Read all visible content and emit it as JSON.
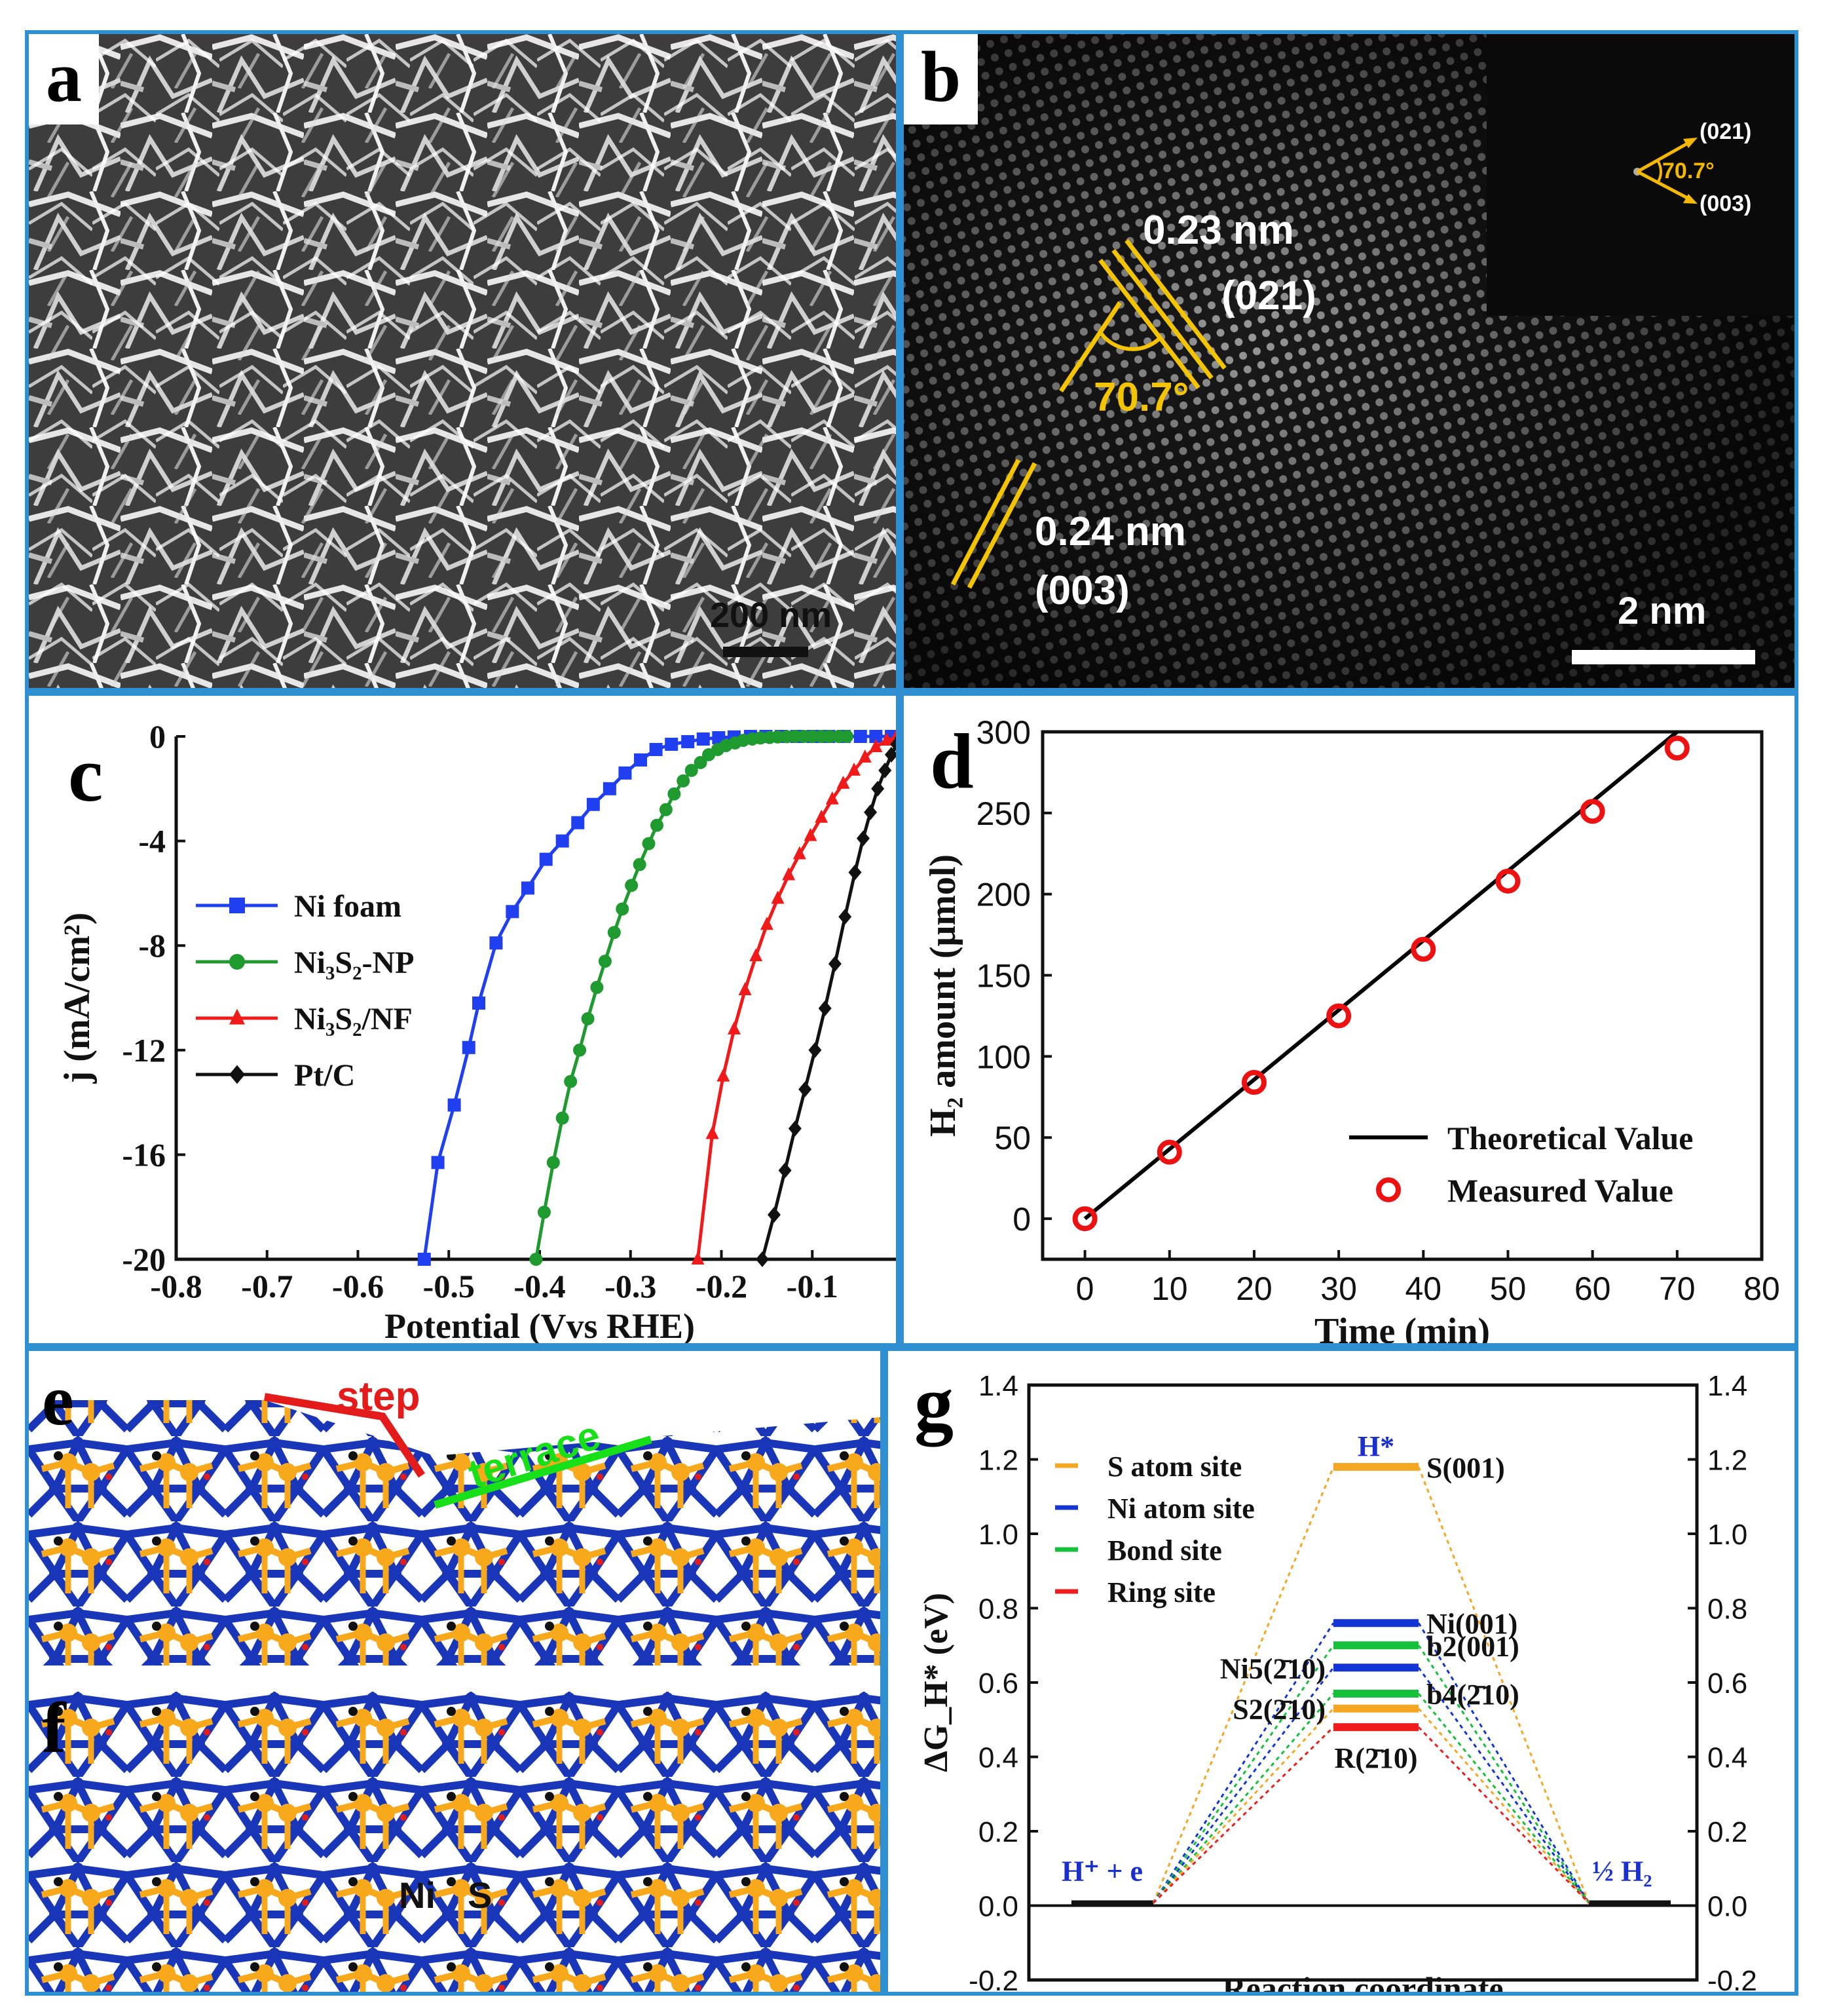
{
  "panels": {
    "a": {
      "label": "a",
      "scale_bar": "200 nm"
    },
    "b": {
      "label": "b",
      "scale_bar": "2 nm",
      "d1": "0.23 nm",
      "plane1": "(021)",
      "d2": "0.24 nm",
      "plane2": "(003)",
      "angle": "70.7°",
      "fft_plane1": "(021)",
      "fft_plane2": "(003)",
      "fft_angle": "70.7°"
    },
    "c": {
      "label": "c"
    },
    "d": {
      "label": "d"
    },
    "e": {
      "label": "e",
      "step": "step",
      "terrace": "terrace"
    },
    "f": {
      "label": "f",
      "atom_ni": "Ni",
      "atom_s": "S"
    },
    "g": {
      "label": "g"
    }
  },
  "colors": {
    "border": "#2f8fd0",
    "ni_blue": "#1a36b8",
    "s_orange": "#f7a81b",
    "yellow": "#f5c400"
  },
  "chart_data": [
    {
      "id": "c",
      "type": "line",
      "xlabel": "Potential (Vvs RHE)",
      "ylabel": "j (mA/cm²)",
      "xlim": [
        -0.8,
        0.0
      ],
      "ylim": [
        -20,
        0
      ],
      "xticks": [
        "-0.8",
        "-0.7",
        "-0.6",
        "-0.5",
        "-0.4",
        "-0.3",
        "-0.2",
        "-0.1"
      ],
      "yticks": [
        "0",
        "-4",
        "-8",
        "-12",
        "-16",
        "-20"
      ],
      "legend_position": "left-middle",
      "grid": false,
      "series": [
        {
          "name": "Ni foam",
          "color": "#1f3ff0",
          "marker": "square",
          "x": [
            -0.527,
            -0.512,
            -0.494,
            -0.478,
            -0.467,
            -0.448,
            -0.43,
            -0.413,
            -0.393,
            -0.375,
            -0.358,
            -0.341,
            -0.323,
            -0.306,
            -0.289,
            -0.272,
            -0.255,
            -0.237,
            -0.22,
            -0.203,
            -0.186,
            -0.168,
            -0.151,
            -0.134,
            -0.117,
            -0.099,
            -0.082,
            -0.065,
            -0.047,
            -0.03,
            -0.013
          ],
          "y": [
            -20,
            -16.3,
            -14.1,
            -11.9,
            -10.2,
            -7.9,
            -6.7,
            -5.8,
            -4.7,
            -4.0,
            -3.3,
            -2.6,
            -2.0,
            -1.4,
            -0.9,
            -0.5,
            -0.3,
            -0.2,
            -0.1,
            -0.05,
            -0.02,
            0,
            0,
            0,
            0,
            0,
            0,
            0,
            0,
            0,
            0
          ]
        },
        {
          "name": "Ni₃S₂-NP",
          "color": "#1e9a2e",
          "marker": "circle",
          "x": [
            -0.404,
            -0.395,
            -0.385,
            -0.375,
            -0.366,
            -0.356,
            -0.347,
            -0.337,
            -0.328,
            -0.318,
            -0.309,
            -0.299,
            -0.29,
            -0.28,
            -0.271,
            -0.261,
            -0.252,
            -0.242,
            -0.233,
            -0.223,
            -0.214,
            -0.204,
            -0.195,
            -0.185,
            -0.176,
            -0.166,
            -0.157,
            -0.147,
            -0.138,
            -0.128,
            -0.119,
            -0.109,
            -0.1,
            -0.09,
            -0.081,
            -0.071,
            -0.062
          ],
          "y": [
            -20,
            -18.2,
            -16.3,
            -14.6,
            -13.2,
            -12.0,
            -10.8,
            -9.6,
            -8.6,
            -7.5,
            -6.6,
            -5.7,
            -4.9,
            -4.1,
            -3.4,
            -2.8,
            -2.2,
            -1.7,
            -1.3,
            -1.0,
            -0.7,
            -0.5,
            -0.35,
            -0.25,
            -0.15,
            -0.1,
            -0.06,
            -0.04,
            -0.02,
            -0.01,
            0,
            0,
            0,
            0,
            0,
            0,
            0
          ]
        },
        {
          "name": "Ni₃S₂/NF",
          "color": "#f01a1a",
          "marker": "triangle",
          "x": [
            -0.226,
            -0.21,
            -0.198,
            -0.186,
            -0.174,
            -0.162,
            -0.15,
            -0.138,
            -0.126,
            -0.114,
            -0.102,
            -0.09,
            -0.078,
            -0.066,
            -0.054,
            -0.042,
            -0.03,
            -0.018,
            -0.008
          ],
          "y": [
            -20,
            -15.2,
            -13.0,
            -11.2,
            -9.7,
            -8.4,
            -7.2,
            -6.2,
            -5.3,
            -4.5,
            -3.8,
            -3.1,
            -2.4,
            -1.8,
            -1.3,
            -0.8,
            -0.4,
            -0.15,
            -0.05
          ]
        },
        {
          "name": "Pt/C",
          "color": "#111111",
          "marker": "diamond",
          "x": [
            -0.155,
            -0.142,
            -0.13,
            -0.119,
            -0.108,
            -0.097,
            -0.086,
            -0.075,
            -0.064,
            -0.053,
            -0.044,
            -0.036,
            -0.028,
            -0.02,
            -0.013,
            -0.007,
            -0.002
          ],
          "y": [
            -20,
            -18.3,
            -16.6,
            -15.0,
            -13.5,
            -12.0,
            -10.4,
            -8.7,
            -6.9,
            -5.2,
            -3.9,
            -2.9,
            -2.0,
            -1.3,
            -0.7,
            -0.3,
            -0.05
          ]
        }
      ]
    },
    {
      "id": "d",
      "type": "scatter",
      "xlabel": "Time (min)",
      "ylabel": "H₂ amount (μmol)",
      "xlim": [
        -5,
        80
      ],
      "ylim": [
        -25,
        300
      ],
      "xticks": [
        "0",
        "10",
        "20",
        "30",
        "40",
        "50",
        "60",
        "70",
        "80"
      ],
      "yticks": [
        "0",
        "50",
        "100",
        "150",
        "200",
        "250",
        "300"
      ],
      "legend_position": "bottom-right",
      "grid": false,
      "series": [
        {
          "name": "Theoretical Value",
          "type": "line",
          "color": "#000000",
          "x": [
            0,
            70
          ],
          "y": [
            0,
            300
          ]
        },
        {
          "name": "Measured Value",
          "type": "scatter",
          "color": "#ee1111",
          "marker": "open-circle",
          "x": [
            0,
            10,
            20,
            30,
            40,
            50,
            60,
            70
          ],
          "y": [
            0,
            41,
            84,
            125,
            166,
            208,
            251,
            290
          ]
        }
      ]
    },
    {
      "id": "g",
      "type": "line",
      "xlabel": "Reaction coordinate",
      "ylabel": "ΔG_H* (eV)",
      "ylim": [
        -0.2,
        1.4
      ],
      "yticks": [
        "-0.2",
        "0.0",
        "0.2",
        "0.4",
        "0.6",
        "0.8",
        "1.0",
        "1.2",
        "1.4"
      ],
      "legend_position": "top-left",
      "grid": false,
      "state_labels": [
        "H⁺ + e",
        "H*",
        "½ H₂"
      ],
      "legend": [
        {
          "name": "S atom site",
          "color": "#f5a623"
        },
        {
          "name": "Ni atom site",
          "color": "#1435d6"
        },
        {
          "name": "Bond site",
          "color": "#15c03a"
        },
        {
          "name": "Ring site",
          "color": "#ee1c1c"
        }
      ],
      "levels": [
        {
          "name": "S(001)",
          "value": 1.18,
          "color": "#f5a623",
          "side": "right"
        },
        {
          "name": "Ni(001)",
          "value": 0.76,
          "color": "#1435d6",
          "side": "right"
        },
        {
          "name": "b2(001)",
          "value": 0.7,
          "color": "#15c03a",
          "side": "right"
        },
        {
          "name": "Ni5(2̄10)",
          "value": 0.64,
          "color": "#1435d6",
          "side": "left"
        },
        {
          "name": "b4(2̄10)",
          "value": 0.57,
          "color": "#15c03a",
          "side": "right"
        },
        {
          "name": "S2(2̄10)",
          "value": 0.53,
          "color": "#f5a623",
          "side": "left"
        },
        {
          "name": "R(2̄10)",
          "value": 0.48,
          "color": "#ee1c1c",
          "side": "below"
        }
      ]
    }
  ]
}
